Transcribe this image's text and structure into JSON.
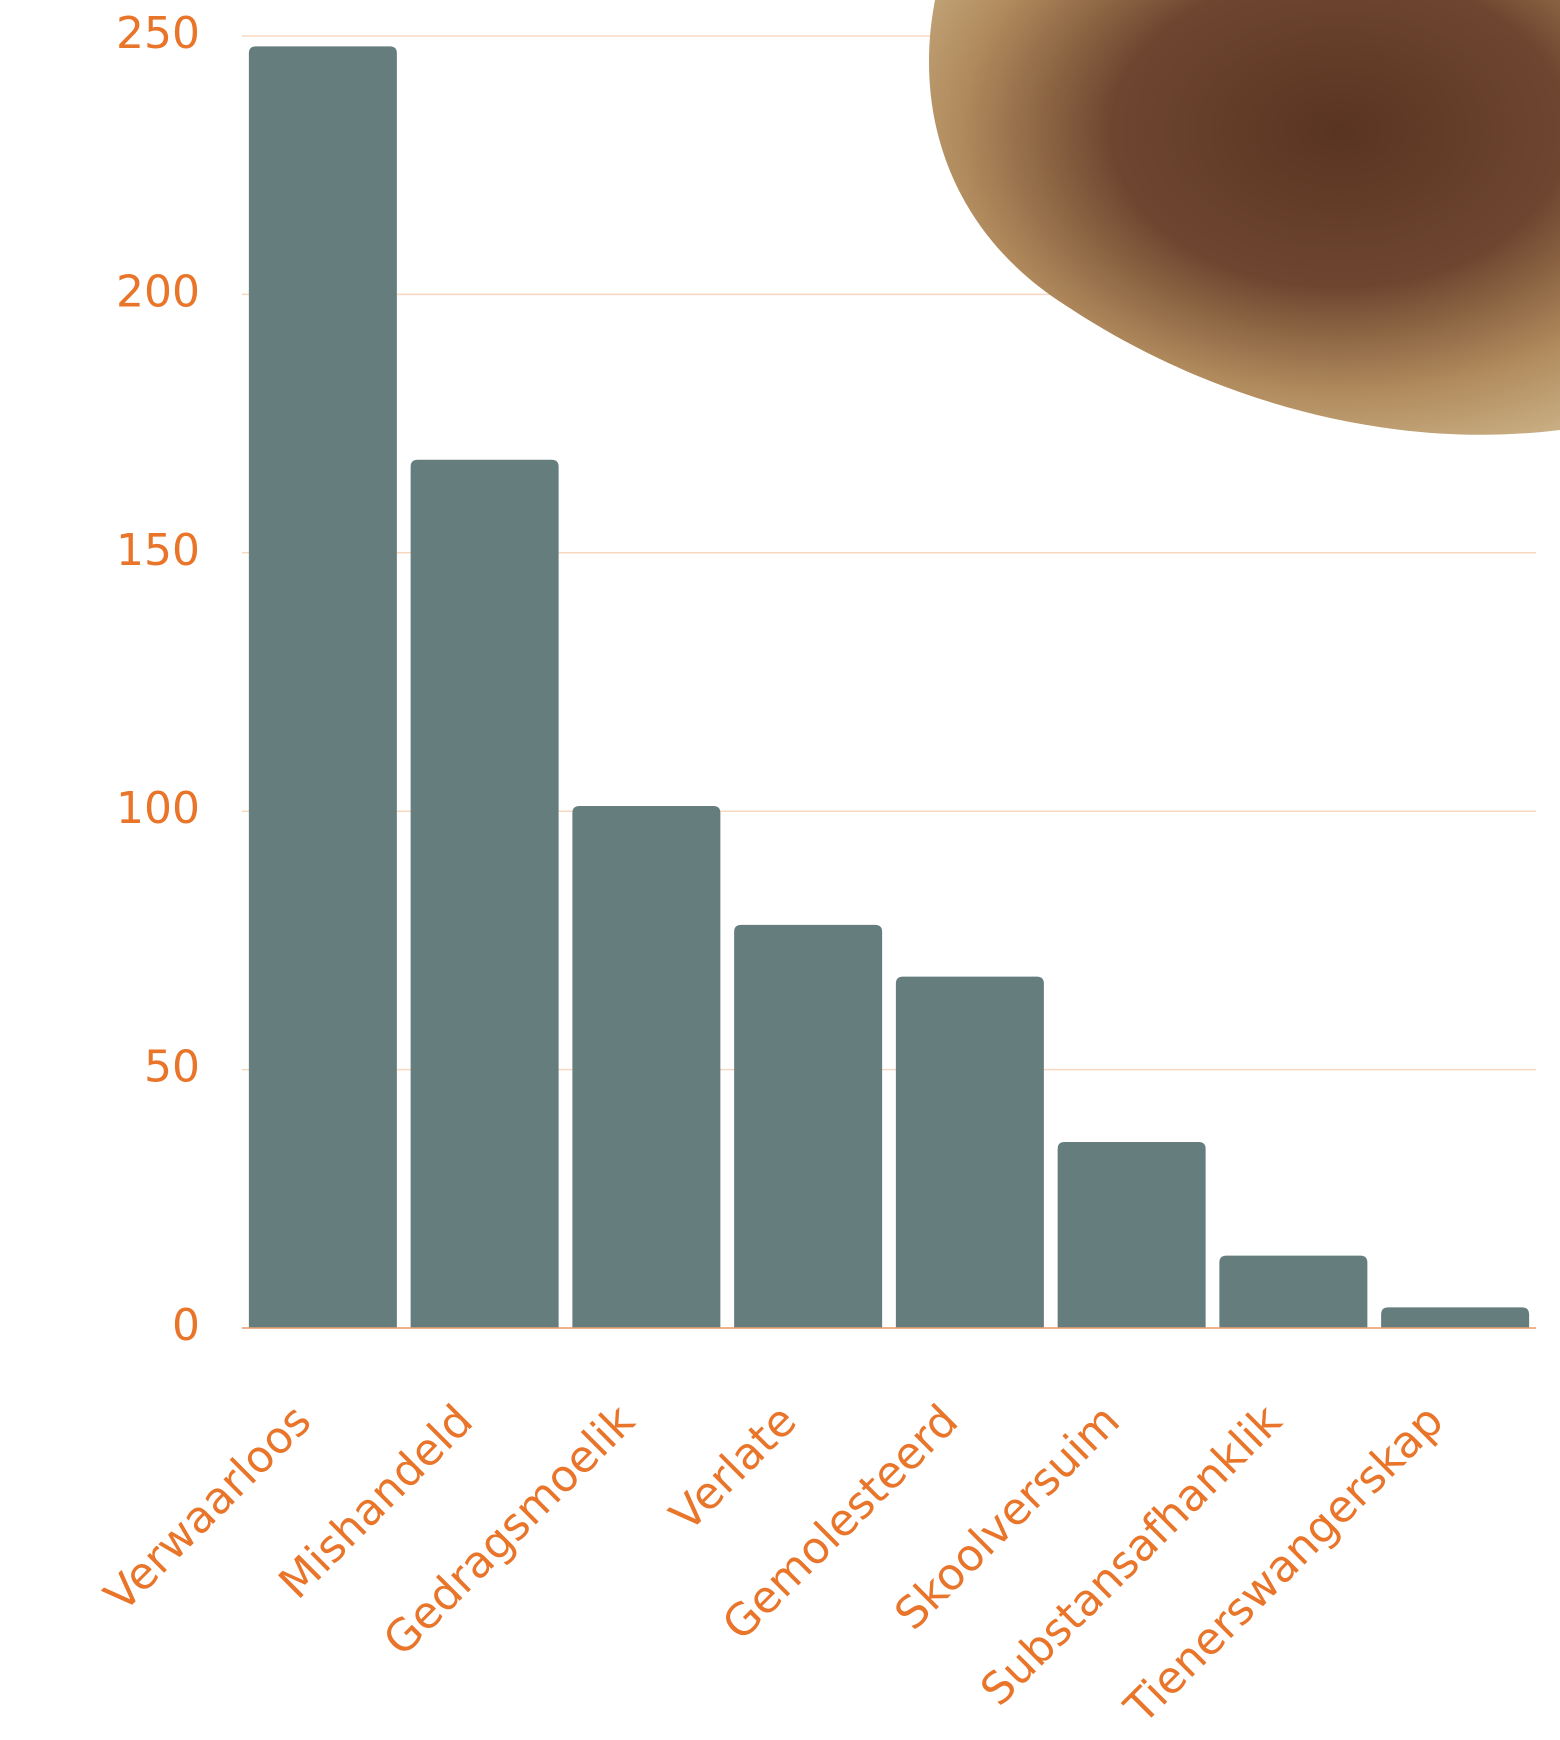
{
  "chart_data": {
    "type": "bar",
    "categories": [
      "Verwaarloos",
      "Mishandeld",
      "Gedragsmoelik",
      "Verlate",
      "Gemolesteerd",
      "Skoolversuim",
      "Substansafhanklik",
      "Tienerswangerskap"
    ],
    "values": [
      248,
      168,
      101,
      78,
      68,
      36,
      14,
      4
    ],
    "color": "#667d7e",
    "ylim": [
      0,
      250
    ],
    "yticks": [
      0,
      50,
      100,
      150,
      200,
      250
    ],
    "grid": true
  }
}
